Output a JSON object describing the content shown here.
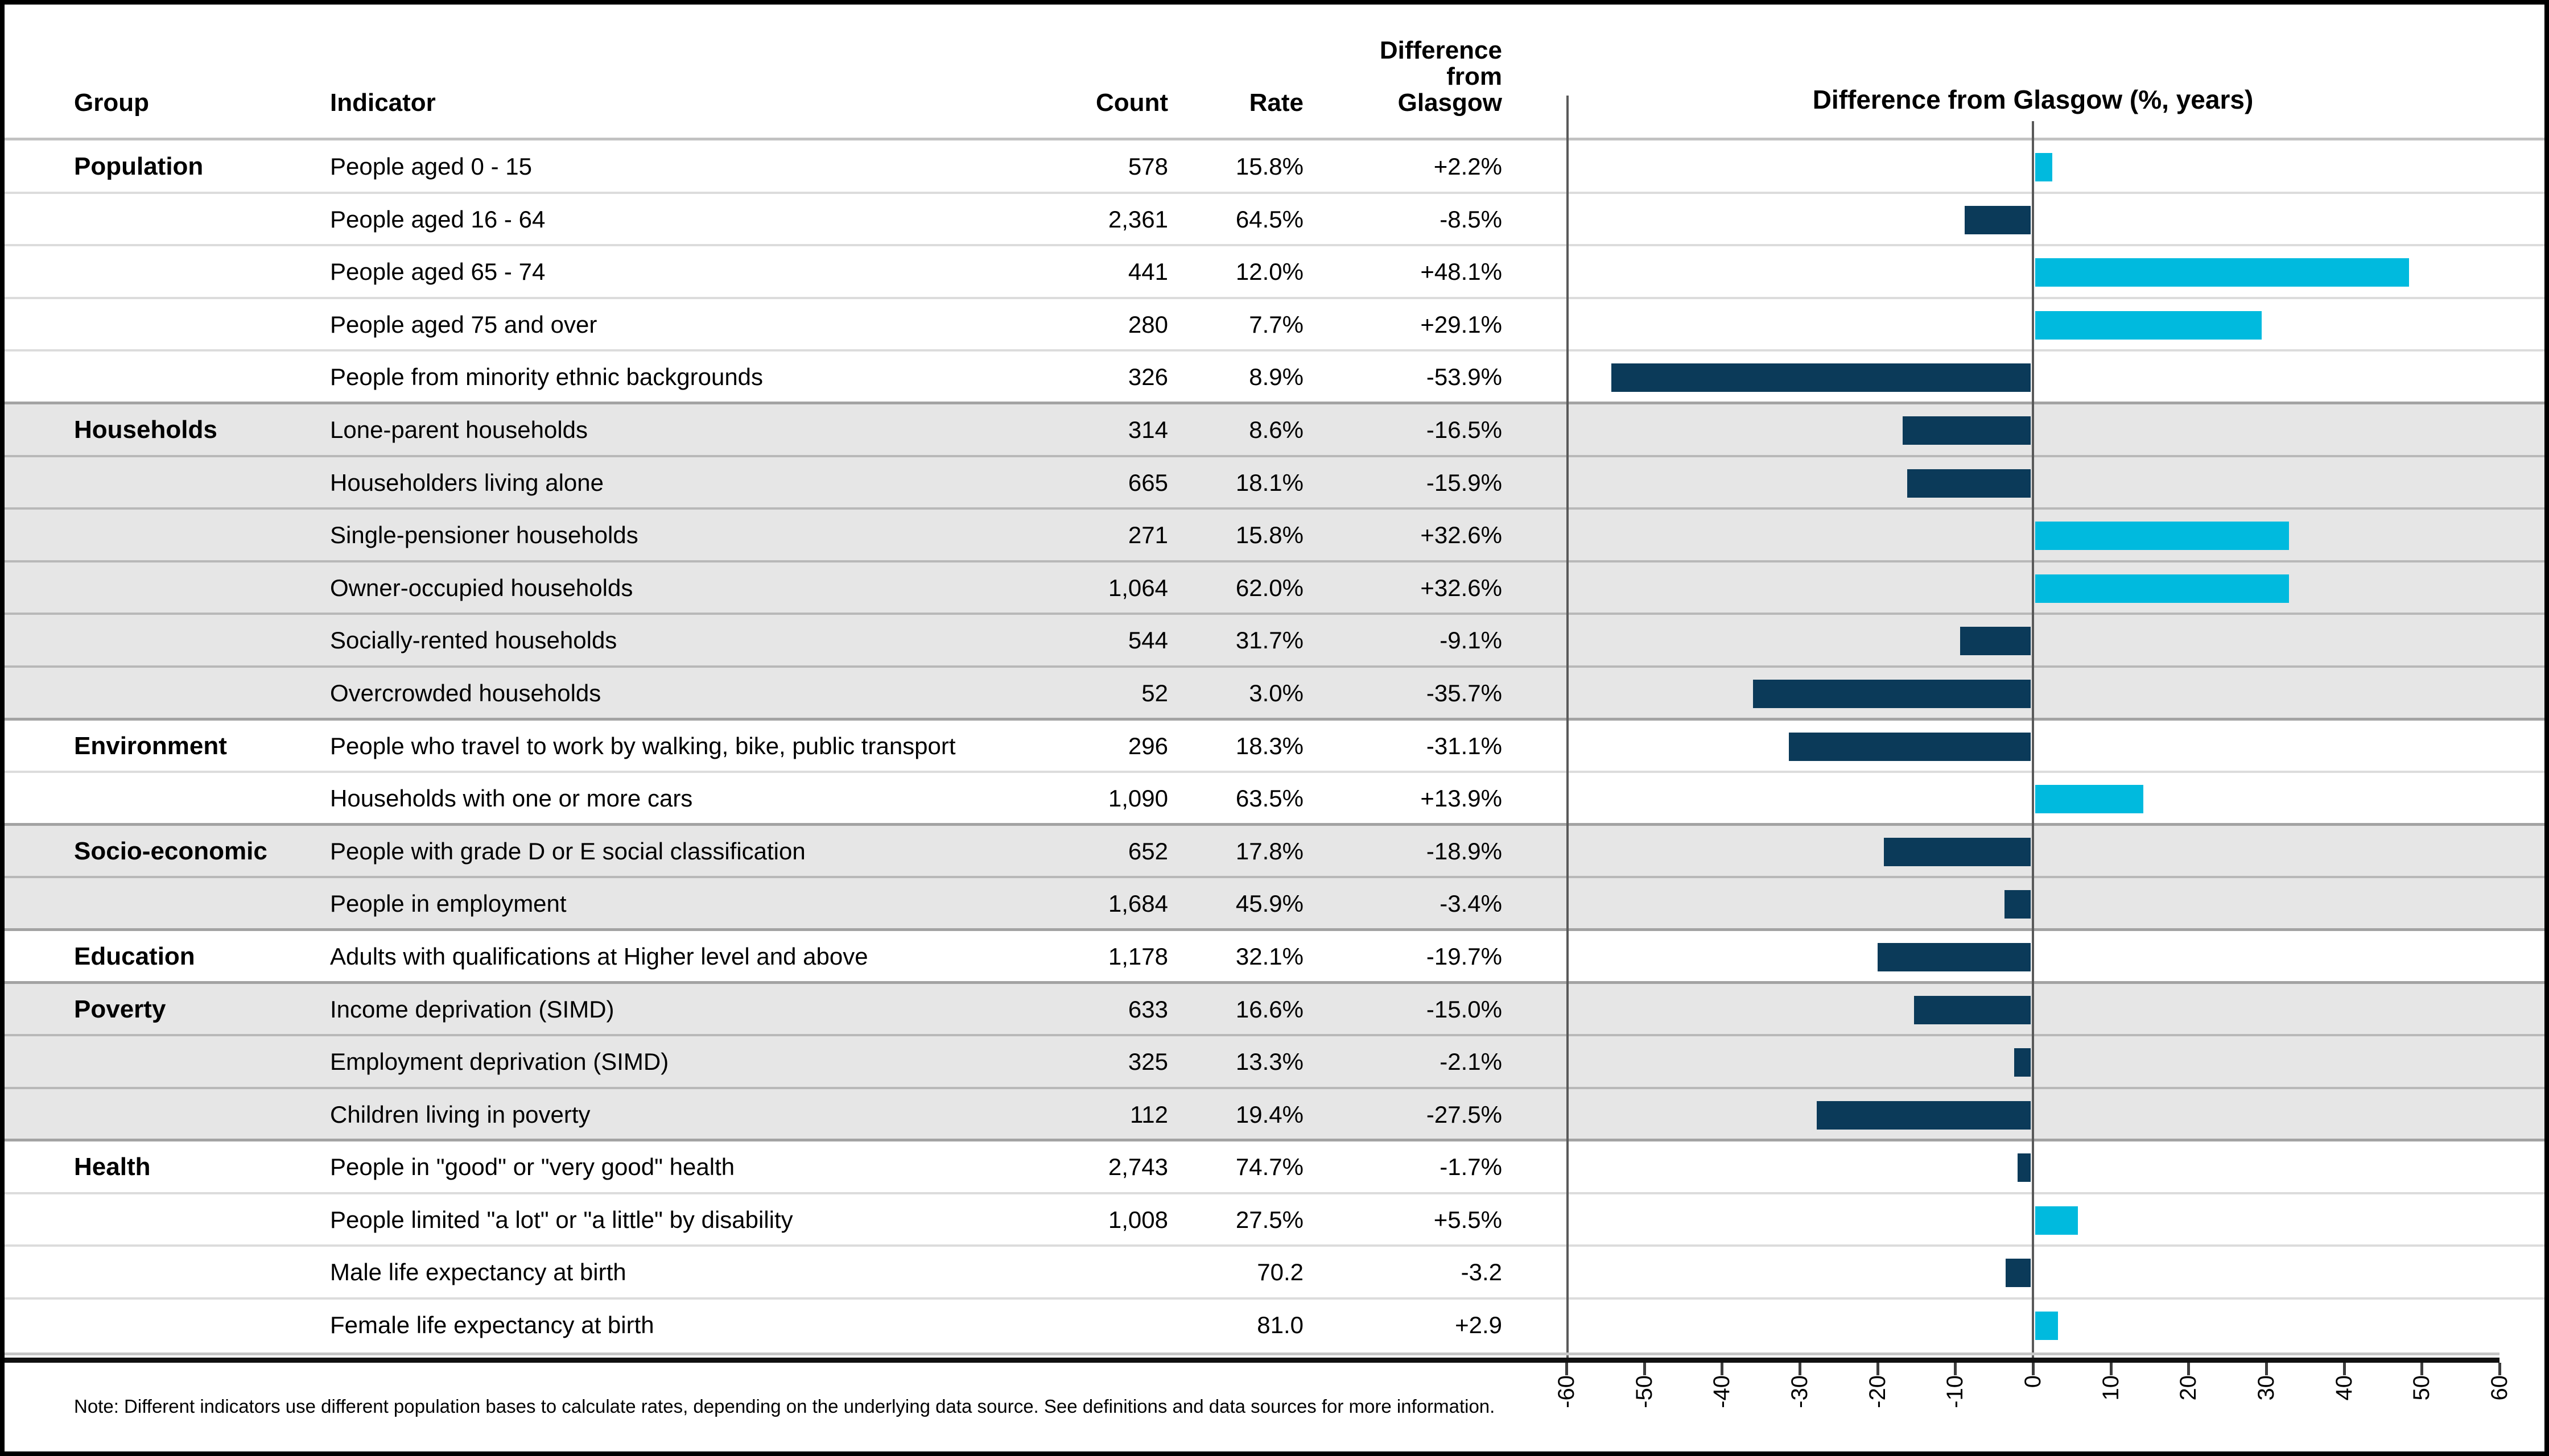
{
  "header": {
    "group": "Group",
    "indicator": "Indicator",
    "count": "Count",
    "rate": "Rate",
    "difference_lines": [
      "Difference",
      "from",
      "Glasgow"
    ]
  },
  "chart": {
    "title": "Difference from Glasgow (%, years)",
    "positive_color": "#00bade",
    "negative_color": "#0b3a59",
    "axis": {
      "min": -60,
      "max": 60,
      "tick_step": 10,
      "tick_labels": [
        "-60",
        "-50",
        "-40",
        "-30",
        "-20",
        "-10",
        "0",
        "10",
        "20",
        "30",
        "40",
        "50",
        "60"
      ]
    }
  },
  "rows": [
    {
      "group": "Population",
      "indicator": "People aged 0 - 15",
      "count": "578",
      "rate": "15.8%",
      "difference": "+2.2%",
      "value": 2.2,
      "stripe": "white"
    },
    {
      "group": "",
      "indicator": "People aged 16 - 64",
      "count": "2,361",
      "rate": "64.5%",
      "difference": "-8.5%",
      "value": -8.5,
      "stripe": "white"
    },
    {
      "group": "",
      "indicator": "People aged 65 - 74",
      "count": "441",
      "rate": "12.0%",
      "difference": "+48.1%",
      "value": 48.1,
      "stripe": "white"
    },
    {
      "group": "",
      "indicator": "People aged 75 and over",
      "count": "280",
      "rate": "7.7%",
      "difference": "+29.1%",
      "value": 29.1,
      "stripe": "white"
    },
    {
      "group": "",
      "indicator": "People from minority ethnic backgrounds",
      "count": "326",
      "rate": "8.9%",
      "difference": "-53.9%",
      "value": -53.9,
      "stripe": "white",
      "group_end": true
    },
    {
      "group": "Households",
      "indicator": "Lone-parent households",
      "count": "314",
      "rate": "8.6%",
      "difference": "-16.5%",
      "value": -16.5,
      "stripe": "gray"
    },
    {
      "group": "",
      "indicator": "Householders living alone",
      "count": "665",
      "rate": "18.1%",
      "difference": "-15.9%",
      "value": -15.9,
      "stripe": "gray"
    },
    {
      "group": "",
      "indicator": "Single-pensioner households",
      "count": "271",
      "rate": "15.8%",
      "difference": "+32.6%",
      "value": 32.6,
      "stripe": "gray"
    },
    {
      "group": "",
      "indicator": "Owner-occupied households",
      "count": "1,064",
      "rate": "62.0%",
      "difference": "+32.6%",
      "value": 32.6,
      "stripe": "gray"
    },
    {
      "group": "",
      "indicator": "Socially-rented households",
      "count": "544",
      "rate": "31.7%",
      "difference": "-9.1%",
      "value": -9.1,
      "stripe": "gray"
    },
    {
      "group": "",
      "indicator": "Overcrowded households",
      "count": "52",
      "rate": "3.0%",
      "difference": "-35.7%",
      "value": -35.7,
      "stripe": "gray",
      "group_end": true
    },
    {
      "group": "Environment",
      "indicator": "People who travel to work by walking, bike, public transport",
      "count": "296",
      "rate": "18.3%",
      "difference": "-31.1%",
      "value": -31.1,
      "stripe": "white"
    },
    {
      "group": "",
      "indicator": "Households with one or more cars",
      "count": "1,090",
      "rate": "63.5%",
      "difference": "+13.9%",
      "value": 13.9,
      "stripe": "white",
      "group_end": true
    },
    {
      "group": "Socio-economic",
      "indicator": "People with grade D or E social classification",
      "count": "652",
      "rate": "17.8%",
      "difference": "-18.9%",
      "value": -18.9,
      "stripe": "gray"
    },
    {
      "group": "",
      "indicator": "People in employment",
      "count": "1,684",
      "rate": "45.9%",
      "difference": "-3.4%",
      "value": -3.4,
      "stripe": "gray",
      "group_end": true
    },
    {
      "group": "Education",
      "indicator": "Adults with qualifications at Higher level and above",
      "count": "1,178",
      "rate": "32.1%",
      "difference": "-19.7%",
      "value": -19.7,
      "stripe": "white",
      "group_end": true
    },
    {
      "group": "Poverty",
      "indicator": "Income deprivation (SIMD)",
      "count": "633",
      "rate": "16.6%",
      "difference": "-15.0%",
      "value": -15.0,
      "stripe": "gray"
    },
    {
      "group": "",
      "indicator": "Employment deprivation (SIMD)",
      "count": "325",
      "rate": "13.3%",
      "difference": "-2.1%",
      "value": -2.1,
      "stripe": "gray"
    },
    {
      "group": "",
      "indicator": "Children living in poverty",
      "count": "112",
      "rate": "19.4%",
      "difference": "-27.5%",
      "value": -27.5,
      "stripe": "gray",
      "group_end": true
    },
    {
      "group": "Health",
      "indicator": "People in \"good\" or \"very good\" health",
      "count": "2,743",
      "rate": "74.7%",
      "difference": "-1.7%",
      "value": -1.7,
      "stripe": "white"
    },
    {
      "group": "",
      "indicator": "People limited \"a lot\" or \"a little\" by disability",
      "count": "1,008",
      "rate": "27.5%",
      "difference": "+5.5%",
      "value": 5.5,
      "stripe": "white"
    },
    {
      "group": "",
      "indicator": "Male life expectancy at birth",
      "count": "",
      "rate": "70.2",
      "difference": "-3.2",
      "value": -3.2,
      "stripe": "white"
    },
    {
      "group": "",
      "indicator": "Female life expectancy at birth",
      "count": "",
      "rate": "81.0",
      "difference": "+2.9",
      "value": 2.9,
      "stripe": "white",
      "last": true
    }
  ],
  "note": "Note: Different indicators use different population bases to calculate rates, depending on the underlying data source. See definitions and data sources for more information.",
  "chart_data": {
    "type": "bar",
    "orientation": "horizontal",
    "title": "Difference from Glasgow (%, years)",
    "categories": [
      "People aged 0 - 15",
      "People aged 16 - 64",
      "People aged 65 - 74",
      "People aged 75 and over",
      "People from minority ethnic backgrounds",
      "Lone-parent households",
      "Householders living alone",
      "Single-pensioner households",
      "Owner-occupied households",
      "Socially-rented households",
      "Overcrowded households",
      "People who travel to work by walking, bike, public transport",
      "Households with one or more cars",
      "People with grade D or E social classification",
      "People in employment",
      "Adults with qualifications at Higher level and above",
      "Income deprivation (SIMD)",
      "Employment deprivation (SIMD)",
      "Children living in poverty",
      "People in \"good\" or \"very good\" health",
      "People limited \"a lot\" or \"a little\" by disability",
      "Male life expectancy at birth",
      "Female life expectancy at birth"
    ],
    "values": [
      2.2,
      -8.5,
      48.1,
      29.1,
      -53.9,
      -16.5,
      -15.9,
      32.6,
      32.6,
      -9.1,
      -35.7,
      -31.1,
      13.9,
      -18.9,
      -3.4,
      -19.7,
      -15.0,
      -2.1,
      -27.5,
      -1.7,
      5.5,
      -3.2,
      2.9
    ],
    "xlim": [
      -60,
      60
    ],
    "grid": false,
    "positive_color": "#00bade",
    "negative_color": "#0b3a59"
  }
}
